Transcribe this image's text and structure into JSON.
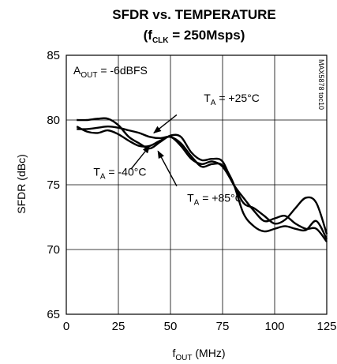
{
  "chart_data": {
    "type": "line",
    "title_line1": "SFDR vs. TEMPERATURE",
    "title_line2_prefix": "(f",
    "title_line2_sub": "CLK",
    "title_line2_suffix": " = 250Msps)",
    "xlabel_main": "f",
    "xlabel_sub": "OUT",
    "xlabel_unit": " (MHz)",
    "ylabel": "SFDR (dBc)",
    "xlim": [
      0,
      125
    ],
    "ylim": [
      65,
      85
    ],
    "xticks": [
      0,
      25,
      50,
      75,
      100,
      125
    ],
    "yticks": [
      65,
      70,
      75,
      80,
      85
    ],
    "grid": true,
    "watermark": "MAX5878 toc10",
    "condition": {
      "main": "A",
      "sub": "OUT",
      "rest": " = -6dBFS"
    },
    "series": [
      {
        "label_main": "T",
        "label_sub": "A",
        "label_rest": " = +25°C",
        "x": [
          5,
          10,
          15,
          20,
          25,
          30,
          35,
          40,
          45,
          50,
          55,
          60,
          65,
          70,
          75,
          80,
          85,
          90,
          95,
          100,
          105,
          110,
          115,
          120,
          125
        ],
        "y": [
          79.3,
          79.3,
          79.4,
          79.5,
          79.4,
          79.2,
          79.0,
          78.7,
          78.6,
          78.7,
          78.2,
          77.2,
          76.4,
          76.6,
          76.5,
          75.2,
          72.8,
          71.8,
          71.4,
          71.6,
          71.8,
          71.6,
          71.5,
          72.2,
          70.8
        ]
      },
      {
        "label_main": "T",
        "label_sub": "A",
        "label_rest": " = -40°C",
        "x": [
          5,
          10,
          15,
          20,
          25,
          30,
          35,
          40,
          45,
          50,
          55,
          60,
          65,
          70,
          75,
          80,
          85,
          90,
          95,
          100,
          105,
          110,
          115,
          120,
          125
        ],
        "y": [
          79.5,
          79.1,
          79.0,
          79.2,
          78.9,
          78.4,
          78.0,
          78.0,
          78.4,
          78.7,
          78.0,
          77.0,
          76.6,
          76.8,
          76.4,
          75.1,
          73.6,
          73.2,
          72.6,
          72.0,
          72.3,
          73.2,
          74.0,
          73.6,
          71.2
        ]
      },
      {
        "label_main": "T",
        "label_sub": "A",
        "label_rest": " = +85°C",
        "x": [
          5,
          10,
          15,
          20,
          25,
          30,
          35,
          40,
          45,
          50,
          55,
          60,
          65,
          70,
          75,
          80,
          85,
          90,
          95,
          100,
          105,
          110,
          115,
          120,
          125
        ],
        "y": [
          80.0,
          80.0,
          80.1,
          80.1,
          79.6,
          78.7,
          78.2,
          77.8,
          78.3,
          78.8,
          78.7,
          77.5,
          76.9,
          77.0,
          76.8,
          75.1,
          74.0,
          73.0,
          72.2,
          72.4,
          72.6,
          72.0,
          71.6,
          71.6,
          70.6
        ]
      }
    ],
    "annotations": [
      {
        "series": 0,
        "label_x": 66,
        "label_y": 81.4,
        "arrow_from": [
          53,
          80.4
        ],
        "arrow_to": [
          42,
          79.0
        ]
      },
      {
        "series": 1,
        "label_x": 13,
        "label_y": 75.7,
        "arrow_from": [
          31,
          76.2
        ],
        "arrow_to": [
          40,
          78.0
        ]
      },
      {
        "series": 2,
        "label_x": 58,
        "label_y": 73.7,
        "arrow_from": [
          53,
          74.9
        ],
        "arrow_to": [
          44,
          77.6
        ]
      }
    ]
  }
}
